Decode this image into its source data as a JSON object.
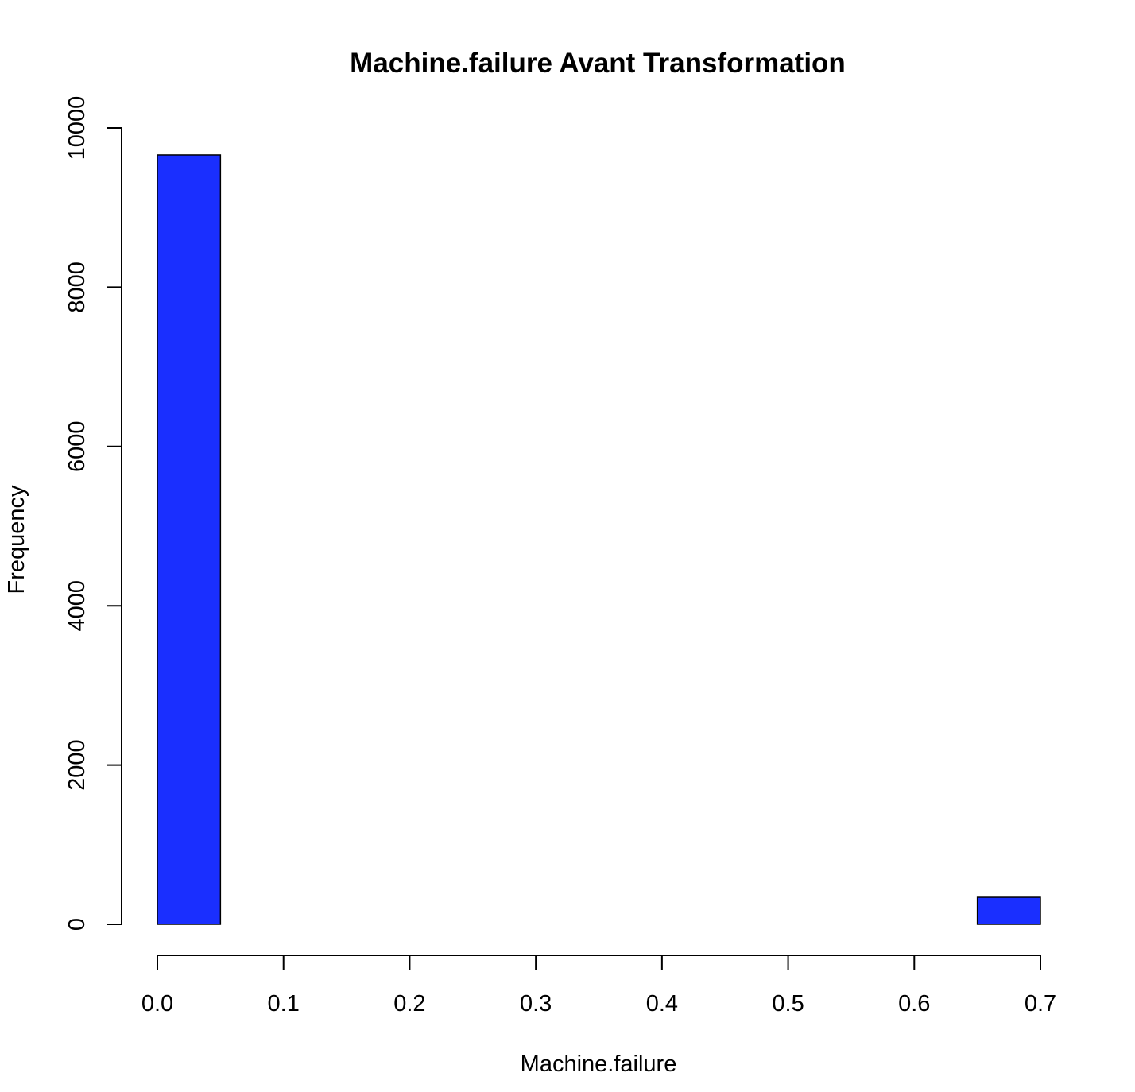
{
  "chart_data": {
    "type": "bar",
    "title": "Machine.failure Avant Transformation",
    "xlabel": "Machine.failure",
    "ylabel": "Frequency",
    "bar_color": "#1a2fff",
    "xlim": [
      0.0,
      0.7
    ],
    "ylim": [
      0,
      10000
    ],
    "x_ticks": [
      "0.0",
      "0.1",
      "0.2",
      "0.3",
      "0.4",
      "0.5",
      "0.6",
      "0.7"
    ],
    "y_ticks": [
      "0",
      "2000",
      "4000",
      "6000",
      "8000",
      "10000"
    ],
    "bins": [
      {
        "x0": 0.0,
        "x1": 0.05,
        "value": 9661
      },
      {
        "x0": 0.05,
        "x1": 0.1,
        "value": 0
      },
      {
        "x0": 0.1,
        "x1": 0.15,
        "value": 0
      },
      {
        "x0": 0.15,
        "x1": 0.2,
        "value": 0
      },
      {
        "x0": 0.2,
        "x1": 0.25,
        "value": 0
      },
      {
        "x0": 0.25,
        "x1": 0.3,
        "value": 0
      },
      {
        "x0": 0.3,
        "x1": 0.35,
        "value": 0
      },
      {
        "x0": 0.35,
        "x1": 0.4,
        "value": 0
      },
      {
        "x0": 0.4,
        "x1": 0.45,
        "value": 0
      },
      {
        "x0": 0.45,
        "x1": 0.5,
        "value": 0
      },
      {
        "x0": 0.5,
        "x1": 0.55,
        "value": 0
      },
      {
        "x0": 0.55,
        "x1": 0.6,
        "value": 0
      },
      {
        "x0": 0.6,
        "x1": 0.65,
        "value": 0
      },
      {
        "x0": 0.65,
        "x1": 0.7,
        "value": 339
      }
    ],
    "grid": false,
    "legend": "none"
  }
}
